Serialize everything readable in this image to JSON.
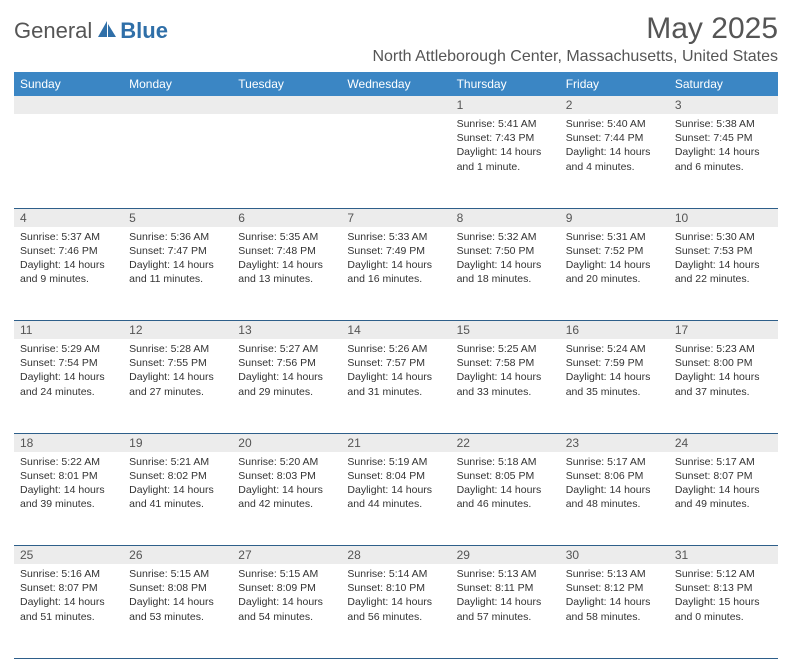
{
  "logo": {
    "general": "General",
    "blue": "Blue"
  },
  "title": "May 2025",
  "location": "North Attleborough Center, Massachusetts, United States",
  "colors": {
    "header_bg": "#3b86c4",
    "header_text": "#ffffff",
    "daynum_bg": "#ececec",
    "border": "#2e5f8a",
    "text": "#333333",
    "title_text": "#555555",
    "logo_blue": "#2f6fa8"
  },
  "day_headers": [
    "Sunday",
    "Monday",
    "Tuesday",
    "Wednesday",
    "Thursday",
    "Friday",
    "Saturday"
  ],
  "weeks": [
    [
      null,
      null,
      null,
      null,
      {
        "n": "1",
        "sr": "5:41 AM",
        "ss": "7:43 PM",
        "dl": "14 hours and 1 minute."
      },
      {
        "n": "2",
        "sr": "5:40 AM",
        "ss": "7:44 PM",
        "dl": "14 hours and 4 minutes."
      },
      {
        "n": "3",
        "sr": "5:38 AM",
        "ss": "7:45 PM",
        "dl": "14 hours and 6 minutes."
      }
    ],
    [
      {
        "n": "4",
        "sr": "5:37 AM",
        "ss": "7:46 PM",
        "dl": "14 hours and 9 minutes."
      },
      {
        "n": "5",
        "sr": "5:36 AM",
        "ss": "7:47 PM",
        "dl": "14 hours and 11 minutes."
      },
      {
        "n": "6",
        "sr": "5:35 AM",
        "ss": "7:48 PM",
        "dl": "14 hours and 13 minutes."
      },
      {
        "n": "7",
        "sr": "5:33 AM",
        "ss": "7:49 PM",
        "dl": "14 hours and 16 minutes."
      },
      {
        "n": "8",
        "sr": "5:32 AM",
        "ss": "7:50 PM",
        "dl": "14 hours and 18 minutes."
      },
      {
        "n": "9",
        "sr": "5:31 AM",
        "ss": "7:52 PM",
        "dl": "14 hours and 20 minutes."
      },
      {
        "n": "10",
        "sr": "5:30 AM",
        "ss": "7:53 PM",
        "dl": "14 hours and 22 minutes."
      }
    ],
    [
      {
        "n": "11",
        "sr": "5:29 AM",
        "ss": "7:54 PM",
        "dl": "14 hours and 24 minutes."
      },
      {
        "n": "12",
        "sr": "5:28 AM",
        "ss": "7:55 PM",
        "dl": "14 hours and 27 minutes."
      },
      {
        "n": "13",
        "sr": "5:27 AM",
        "ss": "7:56 PM",
        "dl": "14 hours and 29 minutes."
      },
      {
        "n": "14",
        "sr": "5:26 AM",
        "ss": "7:57 PM",
        "dl": "14 hours and 31 minutes."
      },
      {
        "n": "15",
        "sr": "5:25 AM",
        "ss": "7:58 PM",
        "dl": "14 hours and 33 minutes."
      },
      {
        "n": "16",
        "sr": "5:24 AM",
        "ss": "7:59 PM",
        "dl": "14 hours and 35 minutes."
      },
      {
        "n": "17",
        "sr": "5:23 AM",
        "ss": "8:00 PM",
        "dl": "14 hours and 37 minutes."
      }
    ],
    [
      {
        "n": "18",
        "sr": "5:22 AM",
        "ss": "8:01 PM",
        "dl": "14 hours and 39 minutes."
      },
      {
        "n": "19",
        "sr": "5:21 AM",
        "ss": "8:02 PM",
        "dl": "14 hours and 41 minutes."
      },
      {
        "n": "20",
        "sr": "5:20 AM",
        "ss": "8:03 PM",
        "dl": "14 hours and 42 minutes."
      },
      {
        "n": "21",
        "sr": "5:19 AM",
        "ss": "8:04 PM",
        "dl": "14 hours and 44 minutes."
      },
      {
        "n": "22",
        "sr": "5:18 AM",
        "ss": "8:05 PM",
        "dl": "14 hours and 46 minutes."
      },
      {
        "n": "23",
        "sr": "5:17 AM",
        "ss": "8:06 PM",
        "dl": "14 hours and 48 minutes."
      },
      {
        "n": "24",
        "sr": "5:17 AM",
        "ss": "8:07 PM",
        "dl": "14 hours and 49 minutes."
      }
    ],
    [
      {
        "n": "25",
        "sr": "5:16 AM",
        "ss": "8:07 PM",
        "dl": "14 hours and 51 minutes."
      },
      {
        "n": "26",
        "sr": "5:15 AM",
        "ss": "8:08 PM",
        "dl": "14 hours and 53 minutes."
      },
      {
        "n": "27",
        "sr": "5:15 AM",
        "ss": "8:09 PM",
        "dl": "14 hours and 54 minutes."
      },
      {
        "n": "28",
        "sr": "5:14 AM",
        "ss": "8:10 PM",
        "dl": "14 hours and 56 minutes."
      },
      {
        "n": "29",
        "sr": "5:13 AM",
        "ss": "8:11 PM",
        "dl": "14 hours and 57 minutes."
      },
      {
        "n": "30",
        "sr": "5:13 AM",
        "ss": "8:12 PM",
        "dl": "14 hours and 58 minutes."
      },
      {
        "n": "31",
        "sr": "5:12 AM",
        "ss": "8:13 PM",
        "dl": "15 hours and 0 minutes."
      }
    ]
  ],
  "labels": {
    "sunrise": "Sunrise:",
    "sunset": "Sunset:",
    "daylight": "Daylight:"
  }
}
